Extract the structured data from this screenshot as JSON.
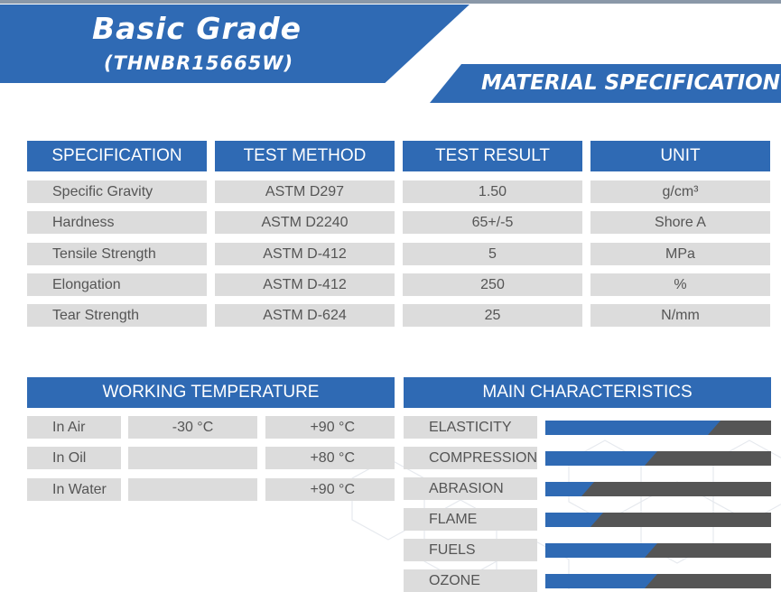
{
  "header": {
    "title": "Basic Grade",
    "subtitle": "(THNBR15665W)",
    "section_title": "MATERIAL SPECIFICATION"
  },
  "spec_table": {
    "columns": [
      "SPECIFICATION",
      "TEST METHOD",
      "TEST RESULT",
      "UNIT"
    ],
    "rows": [
      {
        "spec": "Specific Gravity",
        "method": "ASTM D297",
        "result": "1.50",
        "unit": "g/cm³"
      },
      {
        "spec": "Hardness",
        "method": "ASTM D2240",
        "result": "65+/-5",
        "unit": "Shore A"
      },
      {
        "spec": "Tensile Strength",
        "method": "ASTM D-412",
        "result": "5",
        "unit": "MPa"
      },
      {
        "spec": "Elongation",
        "method": "ASTM D-412",
        "result": "250",
        "unit": "%"
      },
      {
        "spec": "Tear Strength",
        "method": "ASTM D-624",
        "result": "25",
        "unit": "N/mm"
      }
    ]
  },
  "working_temperature": {
    "title": "WORKING TEMPERATURE",
    "rows": [
      {
        "medium": "In Air",
        "low": "-30 °C",
        "high": "+90 °C"
      },
      {
        "medium": "In Oil",
        "low": "",
        "high": "+80 °C"
      },
      {
        "medium": "In Water",
        "low": "",
        "high": "+90 °C"
      }
    ]
  },
  "main_characteristics": {
    "title": "MAIN CHARACTERISTICS",
    "colors": {
      "fill": "#2f6ab4",
      "track": "#555555"
    },
    "items": [
      {
        "label": "ELASTICITY",
        "level": 0.72
      },
      {
        "label": "COMPRESSION",
        "level": 0.44
      },
      {
        "label": "ABRASION",
        "level": 0.16
      },
      {
        "label": "FLAME",
        "level": 0.2
      },
      {
        "label": "FUELS",
        "level": 0.44
      },
      {
        "label": "OZONE",
        "level": 0.44
      }
    ]
  }
}
